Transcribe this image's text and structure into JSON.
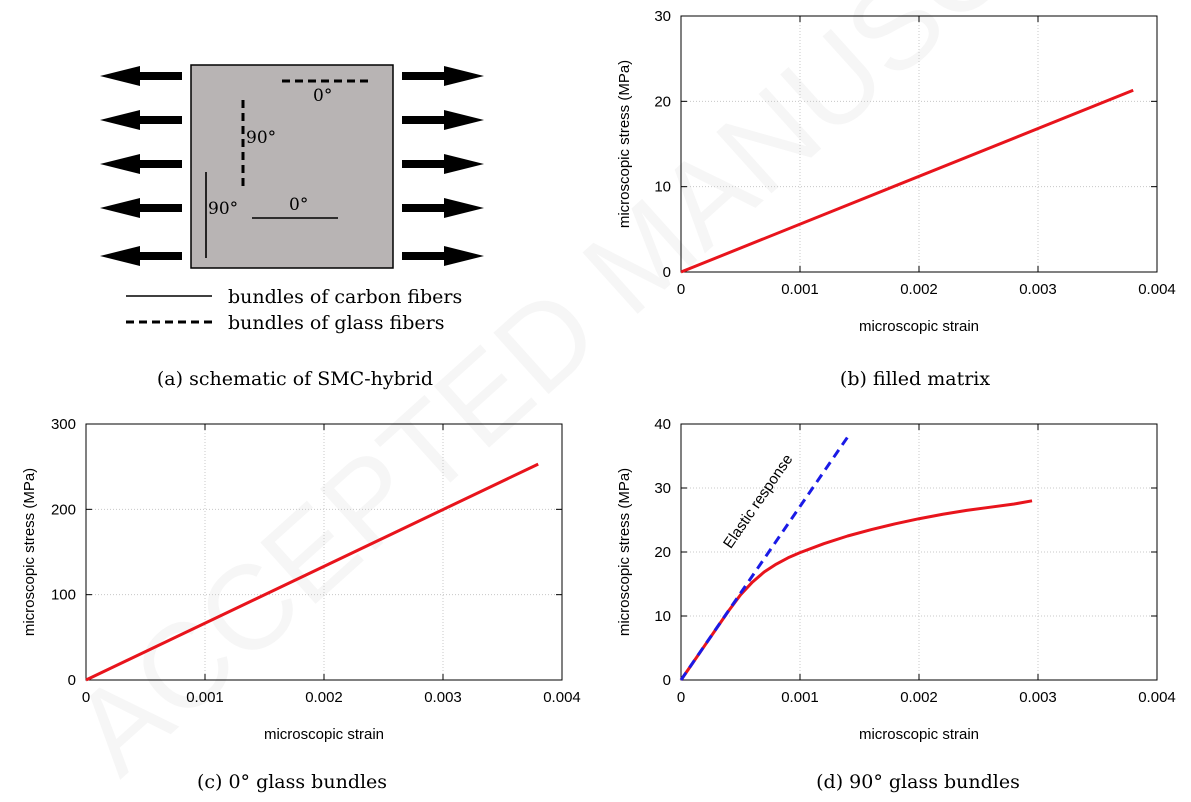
{
  "schematic": {
    "labels": [
      {
        "id": "glass-0-top",
        "text": "0°"
      },
      {
        "id": "glass-90",
        "text": "90°"
      },
      {
        "id": "carbon-90",
        "text": "90°"
      },
      {
        "id": "carbon-0",
        "text": "0°"
      }
    ],
    "legend": [
      {
        "style": "solid",
        "text": "bundles of carbon fibers"
      },
      {
        "style": "dashed",
        "text": "bundles of glass fibers"
      }
    ]
  },
  "captions": {
    "a": "(a) schematic of SMC-hybrid",
    "b": "(b) filled matrix",
    "c": "(c) 0° glass bundles",
    "d": "(d) 90° glass bundles"
  },
  "colors": {
    "simulation": "#e8141c",
    "elastic": "#1a1ae6",
    "schematic_fill": "#b8b4b4",
    "grid": "#c8c8c8"
  },
  "chart_data": [
    {
      "id": "b",
      "type": "line",
      "xlabel": "microscopic strain",
      "ylabel": "microscopic stress (MPa)",
      "xlim": [
        0,
        0.004
      ],
      "ylim": [
        0,
        30
      ],
      "xticks": [
        "0",
        "0.001",
        "0.002",
        "0.003",
        "0.004"
      ],
      "yticks": [
        "0",
        "10",
        "20",
        "30"
      ],
      "grid": true,
      "series": [
        {
          "style": "solid",
          "color": "#e8141c",
          "x": [
            0,
            0.0038
          ],
          "y": [
            0,
            21.3
          ]
        }
      ],
      "annotations": []
    },
    {
      "id": "c",
      "type": "line",
      "xlabel": "microscopic strain",
      "ylabel": "microscopic stress (MPa)",
      "xlim": [
        0,
        0.004
      ],
      "ylim": [
        0,
        300
      ],
      "xticks": [
        "0",
        "0.001",
        "0.002",
        "0.003",
        "0.004"
      ],
      "yticks": [
        "0",
        "100",
        "200",
        "300"
      ],
      "grid": true,
      "series": [
        {
          "style": "solid",
          "color": "#e8141c",
          "x": [
            0,
            0.0038
          ],
          "y": [
            0,
            253
          ]
        }
      ],
      "annotations": []
    },
    {
      "id": "d",
      "type": "line",
      "xlabel": "microscopic strain",
      "ylabel": "microscopic stress (MPa)",
      "xlim": [
        0,
        0.004
      ],
      "ylim": [
        0,
        40
      ],
      "xticks": [
        "0",
        "0.001",
        "0.002",
        "0.003",
        "0.004"
      ],
      "yticks": [
        "0",
        "10",
        "20",
        "30",
        "40"
      ],
      "grid": true,
      "series": [
        {
          "style": "solid",
          "color": "#e8141c",
          "x": [
            0,
            0.0001,
            0.0002,
            0.0003,
            0.0004,
            0.0005,
            0.0006,
            0.0007,
            0.0008,
            0.0009,
            0.001,
            0.0012,
            0.0014,
            0.0016,
            0.0018,
            0.002,
            0.0022,
            0.0024,
            0.0026,
            0.0028,
            0.00295
          ],
          "y": [
            0,
            2.7,
            5.4,
            8.1,
            10.8,
            13.3,
            15.3,
            16.9,
            18.1,
            19.1,
            19.9,
            21.3,
            22.5,
            23.5,
            24.4,
            25.2,
            25.9,
            26.5,
            27.0,
            27.5,
            28.0
          ]
        },
        {
          "style": "dashed",
          "color": "#1a1ae6",
          "x": [
            0,
            0.00142
          ],
          "y": [
            0,
            38.5
          ]
        }
      ],
      "annotations": [
        {
          "text": "Elastic response",
          "color": "#1a1ae6",
          "x": 0.00068,
          "y": 27.5
        }
      ]
    }
  ]
}
